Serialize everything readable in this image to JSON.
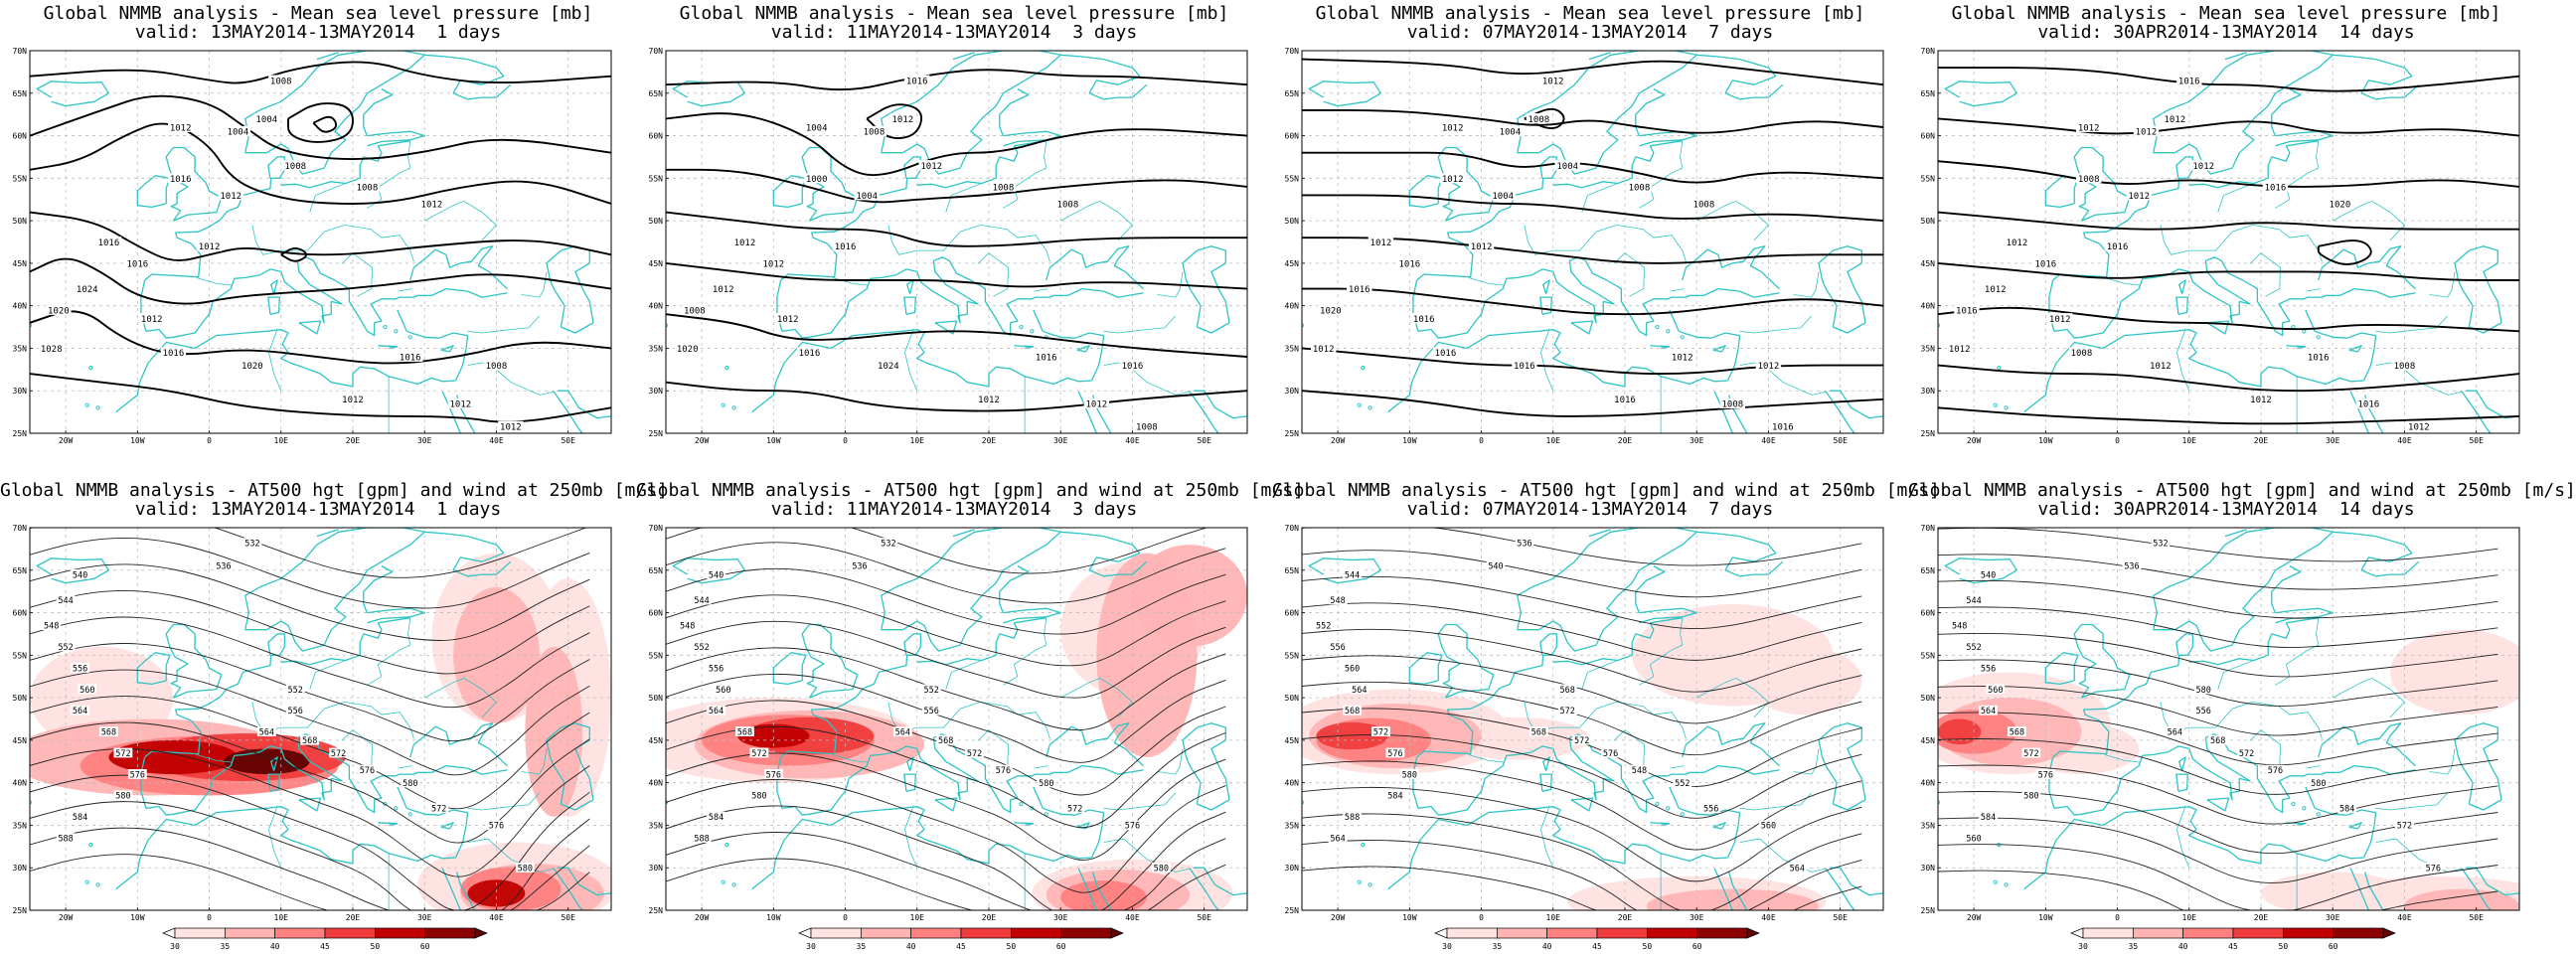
{
  "panels": [
    {
      "title": "Global NMMB analysis - Mean sea level pressure [mb]",
      "valid": "valid: 13MAY2014-13MAY2014  1 days",
      "kind": "mslp",
      "labels": [
        "1008",
        "1004",
        "1012",
        "1004",
        "1008",
        "1016",
        "1012",
        "1008",
        "1012",
        "1016",
        "1012",
        "1016",
        "1024",
        "1020",
        "1012",
        "1016",
        "1028",
        "1020",
        "1016",
        "1012",
        "1008",
        "1012",
        "1012"
      ]
    },
    {
      "title": "Global NMMB analysis - Mean sea level pressure [mb]",
      "valid": "valid: 11MAY2014-13MAY2014  3 days",
      "kind": "mslp",
      "labels": [
        "1016",
        "1012",
        "1004",
        "1008",
        "1012",
        "1000",
        "1004",
        "1008",
        "1008",
        "1012",
        "1016",
        "1012",
        "1012",
        "1008",
        "1012",
        "1016",
        "1020",
        "1024",
        "1016",
        "1012",
        "1016",
        "1012",
        "1008"
      ]
    },
    {
      "title": "Global NMMB analysis - Mean sea level pressure [mb]",
      "valid": "valid: 07MAY2014-13MAY2014  7 days",
      "kind": "mslp",
      "labels": [
        "1012",
        "1008",
        "1012",
        "1004",
        "1004",
        "1012",
        "1004",
        "1008",
        "1008",
        "1012",
        "1012",
        "1016",
        "1016",
        "1020",
        "1016",
        "1016",
        "1012",
        "1016",
        "1012",
        "1016",
        "1012",
        "1008",
        "1016"
      ]
    },
    {
      "title": "Global NMMB analysis - Mean sea level pressure [mb]",
      "valid": "valid: 30APR2014-13MAY2014  14 days",
      "kind": "mslp",
      "labels": [
        "1016",
        "1012",
        "1012",
        "1012",
        "1012",
        "1008",
        "1012",
        "1016",
        "1020",
        "1012",
        "1016",
        "1016",
        "1012",
        "1016",
        "1012",
        "1008",
        "1012",
        "1012",
        "1016",
        "1012",
        "1008",
        "1016",
        "1012"
      ]
    },
    {
      "title": "Global NMMB analysis - AT500 hgt [gpm] and wind at 250mb [m/s]",
      "valid": "valid: 13MAY2014-13MAY2014  1 days",
      "kind": "z500",
      "labels": [
        "532",
        "536",
        "540",
        "544",
        "548",
        "552",
        "556",
        "560",
        "564",
        "568",
        "572",
        "576",
        "580",
        "584",
        "588",
        "564",
        "568",
        "572",
        "576",
        "580",
        "572",
        "576",
        "580",
        "552",
        "556"
      ]
    },
    {
      "title": "Global NMMB analysis - AT500 hgt [gpm] and wind at 250mb [m/s]",
      "valid": "valid: 11MAY2014-13MAY2014  3 days",
      "kind": "z500",
      "labels": [
        "532",
        "536",
        "540",
        "544",
        "548",
        "552",
        "556",
        "560",
        "564",
        "568",
        "572",
        "576",
        "580",
        "584",
        "588",
        "564",
        "568",
        "572",
        "576",
        "580",
        "572",
        "576",
        "580",
        "552",
        "556"
      ]
    },
    {
      "title": "Global NMMB analysis - AT500 hgt [gpm] and wind at 250mb [m/s]",
      "valid": "valid: 07MAY2014-13MAY2014  7 days",
      "kind": "z500",
      "labels": [
        "536",
        "540",
        "544",
        "548",
        "552",
        "556",
        "560",
        "564",
        "568",
        "572",
        "576",
        "580",
        "584",
        "588",
        "564",
        "568",
        "572",
        "576",
        "548",
        "552",
        "556",
        "560",
        "564",
        "568",
        "572"
      ]
    },
    {
      "title": "Global NMMB analysis - AT500 hgt [gpm] and wind at 250mb [m/s]",
      "valid": "valid: 30APR2014-13MAY2014  14 days",
      "kind": "z500",
      "labels": [
        "532",
        "536",
        "540",
        "544",
        "548",
        "552",
        "556",
        "560",
        "564",
        "568",
        "572",
        "576",
        "580",
        "584",
        "560",
        "564",
        "568",
        "572",
        "576",
        "580",
        "584",
        "572",
        "576",
        "580",
        "556"
      ]
    }
  ],
  "axes": {
    "lat_labels": [
      "70N",
      "65N",
      "60N",
      "55N",
      "50N",
      "45N",
      "40N",
      "35N",
      "30N",
      "25N"
    ],
    "lon_labels": [
      "20W",
      "10W",
      "0",
      "10E",
      "20E",
      "30E",
      "40E",
      "50E"
    ]
  },
  "colorbar": {
    "ticks": [
      "30",
      "35",
      "40",
      "45",
      "50",
      "60"
    ],
    "colors": [
      "#ffffff",
      "#ffe2e2",
      "#ffb4b4",
      "#ff8080",
      "#f03c3c",
      "#c00000",
      "#600000"
    ]
  },
  "style": {
    "coast_color": "#2ec4c4",
    "contour_color": "#000000",
    "grid_color": "#bcbcbc"
  }
}
